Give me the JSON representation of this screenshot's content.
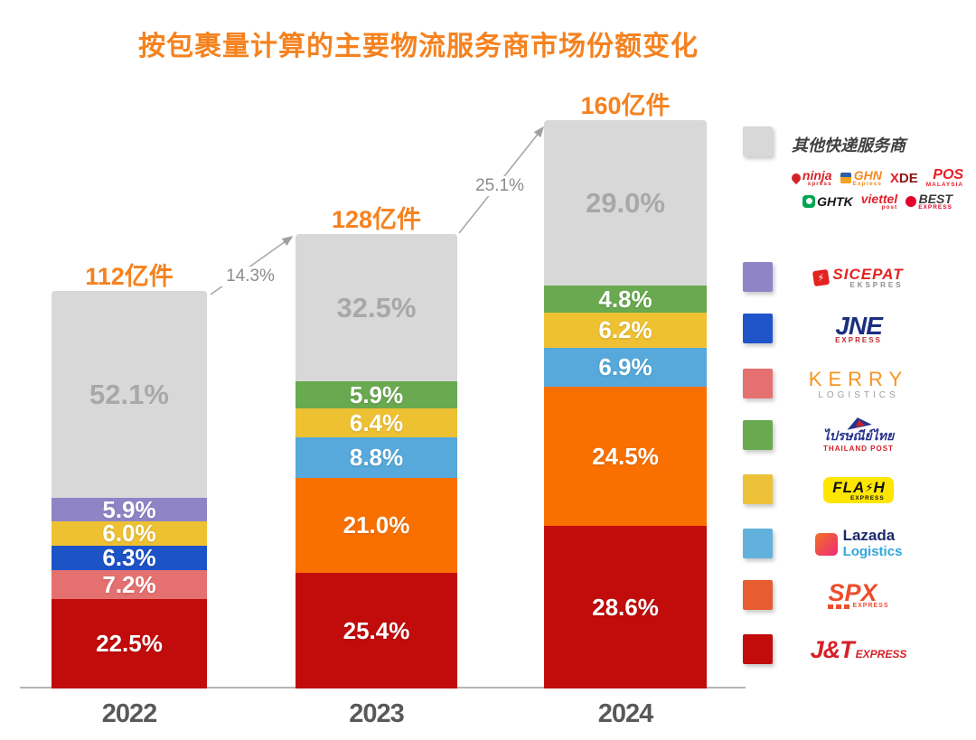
{
  "title": "按包裹量计算的主要物流服务商市场份额变化",
  "title_color": "#f5821f",
  "chart_data": {
    "type": "bar",
    "stacked": true,
    "unit": "亿件",
    "categories": [
      "2022",
      "2023",
      "2024"
    ],
    "totals": [
      112,
      128,
      160
    ],
    "total_labels": [
      "112亿件",
      "128亿件",
      "160亿件"
    ],
    "growth_arrows": [
      {
        "from": "2022",
        "to": "2023",
        "label": "14.3%"
      },
      {
        "from": "2023",
        "to": "2024",
        "label": "25.1%"
      }
    ],
    "segments_order": "bottom-to-top",
    "bars": [
      {
        "year": "2022",
        "total": 112,
        "label": "112亿件",
        "segments": [
          {
            "company": "J&T Express",
            "pct": 22.5
          },
          {
            "company": "Kerry Logistics",
            "pct": 7.2
          },
          {
            "company": "JNE Express",
            "pct": 6.3
          },
          {
            "company": "Flash Express",
            "pct": 6.0
          },
          {
            "company": "SiCepat Ekspres",
            "pct": 5.9
          },
          {
            "company": "其他快递服务商",
            "pct": 52.1
          }
        ]
      },
      {
        "year": "2023",
        "total": 128,
        "label": "128亿件",
        "segments": [
          {
            "company": "J&T Express",
            "pct": 25.4
          },
          {
            "company": "SPX Express",
            "pct": 21.0
          },
          {
            "company": "Lazada Logistics",
            "pct": 8.8
          },
          {
            "company": "Flash Express",
            "pct": 6.4
          },
          {
            "company": "Thailand Post",
            "pct": 5.9
          },
          {
            "company": "其他快递服务商",
            "pct": 32.5
          }
        ]
      },
      {
        "year": "2024",
        "total": 160,
        "label": "160亿件",
        "segments": [
          {
            "company": "J&T Express",
            "pct": 28.6
          },
          {
            "company": "SPX Express",
            "pct": 24.5
          },
          {
            "company": "Lazada Logistics",
            "pct": 6.9
          },
          {
            "company": "Flash Express",
            "pct": 6.2
          },
          {
            "company": "Thailand Post",
            "pct": 4.8
          },
          {
            "company": "其他快递服务商",
            "pct": 29.0
          }
        ]
      }
    ],
    "colors": {
      "J&T Express": "#c20b0b",
      "Kerry Logistics": "#e57070",
      "JNE Express": "#1c53c7",
      "Flash Express": "#eec133",
      "SiCepat Ekspres": "#8f84c6",
      "SPX Express": "#fa7000",
      "Lazada Logistics": "#56a9da",
      "Thailand Post": "#69a950",
      "其他快递服务商": "#d8d8d8"
    },
    "ylabel": "",
    "xlabel": "",
    "grid": false,
    "legend_position": "right"
  },
  "legend": {
    "other": {
      "swatch": "#d8d8d8",
      "label": "其他快递服务商"
    },
    "other_logos": [
      [
        {
          "key": "ninja",
          "text": "ninja",
          "sub": "xpress",
          "color": "#d3232a"
        },
        {
          "key": "ghn",
          "text": "GHN",
          "sub": "Express",
          "color": "#f68b1f"
        },
        {
          "key": "xde",
          "text": "X",
          "text2": "DE",
          "color": "#e02128",
          "color2": "#8c181c"
        },
        {
          "key": "pos",
          "text": "POS",
          "sub": "MALAYSIA",
          "color": "#ee1c25"
        }
      ],
      [
        {
          "key": "ghtk",
          "text": "GHTK",
          "color": "#161616"
        },
        {
          "key": "viettel",
          "text": "viettel",
          "sub": "post",
          "color": "#e0232e"
        },
        {
          "key": "best",
          "text": "BEST",
          "sub": "EXPRESS",
          "color": "#3a3a3a",
          "sub_color": "#e4002b"
        }
      ]
    ],
    "items": [
      {
        "key": "sicepat",
        "name": "SiCepat Ekspres",
        "swatch": "#8f84c6",
        "text": "SICEPAT",
        "sub": "EKSPRES",
        "color": "#e4231f",
        "sub_color": "#8c8c8c"
      },
      {
        "key": "jne",
        "name": "JNE Express",
        "swatch": "#1f55c8",
        "text": "JNE",
        "sub": "EXPRESS",
        "color": "#1b2f7e",
        "sub_color": "#c1272d"
      },
      {
        "key": "kerry",
        "name": "Kerry Logistics",
        "swatch": "#e57070",
        "text": "KERRY",
        "sub": "LOGISTICS",
        "color": "#f7941d",
        "sub_color": "#9aa0a3"
      },
      {
        "key": "thailandpost",
        "name": "Thailand Post",
        "swatch": "#69a950",
        "text": "ไปรษณีย์ไทย",
        "sub": "THAILAND POST",
        "color": "#27348b",
        "sub_color": "#d12028"
      },
      {
        "key": "flash",
        "name": "Flash Express",
        "swatch": "#eec13b",
        "text": "FLASH",
        "sub": "EXPRESS",
        "color": "#111111",
        "sub_color": "#111111"
      },
      {
        "key": "lazada",
        "name": "Lazada Logistics",
        "swatch": "#62b1dd",
        "text": "Lazada",
        "sub": "Logistics",
        "color": "#1b2a6b",
        "sub_color": "#2ea7df"
      },
      {
        "key": "spx",
        "name": "SPX Express",
        "swatch": "#e85c31",
        "text": "SPX",
        "sub": "EXPRESS",
        "color": "#ee4d2d",
        "sub_color": "#ee4d2d"
      },
      {
        "key": "jt",
        "name": "J&T Express",
        "swatch": "#c20b0b",
        "text": "J&T",
        "sub": "EXPRESS",
        "color": "#d71f28",
        "sub_color": "#d71f28"
      }
    ]
  },
  "axis": {
    "years_color": "#595959",
    "gray_label_color": "#a8a8a8"
  }
}
